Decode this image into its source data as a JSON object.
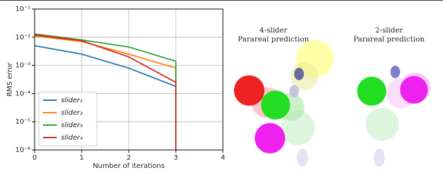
{
  "chart_data": {
    "type": "line",
    "xlabel": "Number of iterations",
    "ylabel": "RMS error",
    "x": [
      0,
      1,
      2,
      3,
      3
    ],
    "series": [
      {
        "name": "slider₁",
        "color": "#1f77b4",
        "values": [
          0.005,
          0.0025,
          0.0008,
          0.00018,
          1e-06
        ]
      },
      {
        "name": "slider₂",
        "color": "#ff7f0e",
        "values": [
          0.011,
          0.007,
          0.0025,
          0.0008,
          1e-06
        ]
      },
      {
        "name": "slider₃",
        "color": "#2ca02c",
        "values": [
          0.013,
          0.008,
          0.0045,
          0.0014,
          1e-06
        ]
      },
      {
        "name": "slider₄",
        "color": "#d62728",
        "values": [
          0.012,
          0.0075,
          0.002,
          0.00025,
          1e-06
        ]
      }
    ],
    "xlim": [
      0,
      4
    ],
    "xticks": [
      0,
      1,
      2,
      3,
      4
    ],
    "ylim": [
      1e-06,
      0.1
    ],
    "log_y": true,
    "yticks": [
      {
        "value": 1e-06,
        "label": "10⁻⁶"
      },
      {
        "value": 1e-05,
        "label": "10⁻⁵"
      },
      {
        "value": 0.0001,
        "label": "10⁻⁴"
      },
      {
        "value": 0.001,
        "label": "10⁻³"
      },
      {
        "value": 0.01,
        "label": "10⁻²"
      },
      {
        "value": 0.1,
        "label": "10⁻¹"
      }
    ],
    "grid": true,
    "legend": "lower left"
  },
  "panels": [
    {
      "title": "4-slider",
      "subtitle": "Parareal prediction"
    },
    {
      "title": "2-slider",
      "subtitle": "Parareal prediction"
    }
  ]
}
